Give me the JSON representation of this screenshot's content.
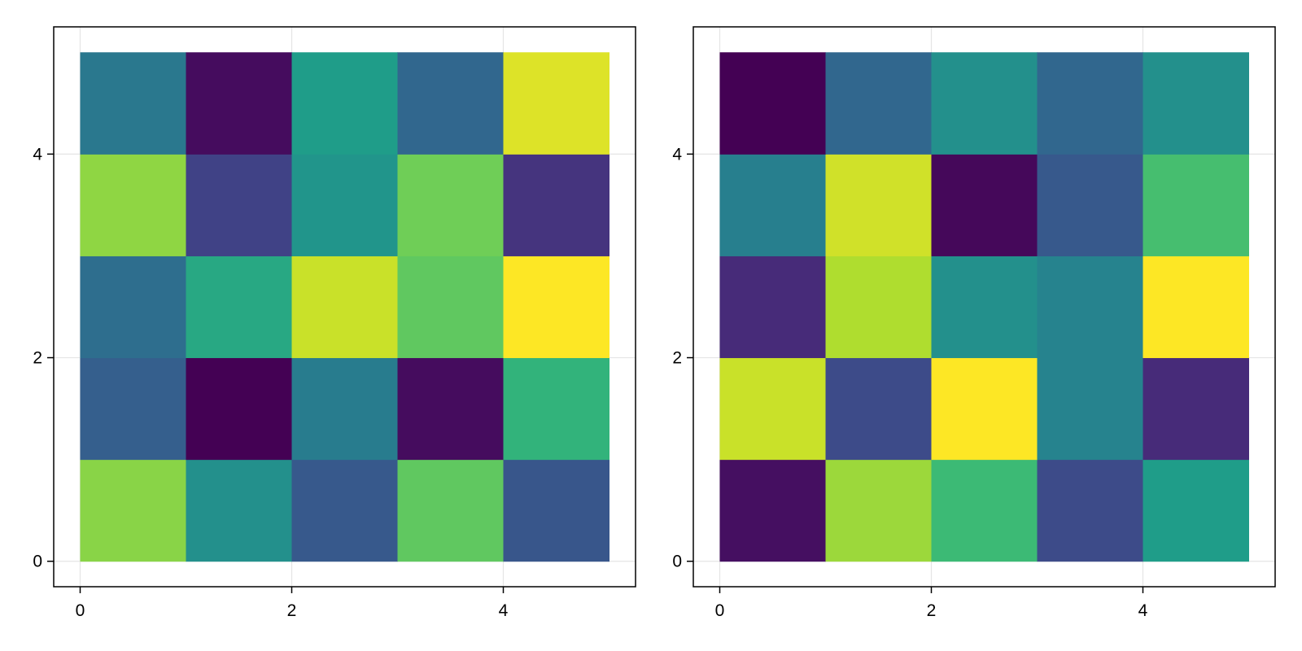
{
  "chart_data": [
    {
      "type": "heatmap",
      "colormap": "viridis",
      "colorrange": [
        0,
        1
      ],
      "x_edges": [
        0,
        1,
        2,
        3,
        4,
        5
      ],
      "y_edges": [
        0,
        1,
        2,
        3,
        4,
        5
      ],
      "values": [
        [
          0.82,
          0.5,
          0.28,
          0.75,
          0.27
        ],
        [
          0.3,
          0.0,
          0.42,
          0.03,
          0.65
        ],
        [
          0.36,
          0.6,
          0.92,
          0.75,
          1.0
        ],
        [
          0.83,
          0.2,
          0.52,
          0.78,
          0.15
        ],
        [
          0.4,
          0.03,
          0.55,
          0.33,
          0.95
        ]
      ],
      "xlim": [
        -0.25,
        5.25
      ],
      "ylim": [
        -0.25,
        5.25
      ],
      "xticks": [
        0,
        2,
        4
      ],
      "yticks": [
        0,
        2,
        4
      ],
      "grid": true
    },
    {
      "type": "heatmap",
      "colormap": "viridis",
      "colorrange": [
        0,
        1
      ],
      "x_edges": [
        0,
        1,
        2,
        3,
        4,
        5
      ],
      "y_edges": [
        0,
        1,
        2,
        3,
        4,
        5
      ],
      "values": [
        [
          0.04,
          0.85,
          0.68,
          0.23,
          0.55
        ],
        [
          0.92,
          0.23,
          1.0,
          0.45,
          0.12
        ],
        [
          0.12,
          0.88,
          0.5,
          0.45,
          1.0
        ],
        [
          0.43,
          0.93,
          0.02,
          0.28,
          0.7
        ],
        [
          0.0,
          0.33,
          0.5,
          0.33,
          0.5
        ]
      ],
      "xlim": [
        -0.25,
        5.25
      ],
      "ylim": [
        -0.25,
        5.25
      ],
      "xticks": [
        0,
        2,
        4
      ],
      "yticks": [
        0,
        2,
        4
      ],
      "grid": true
    }
  ]
}
